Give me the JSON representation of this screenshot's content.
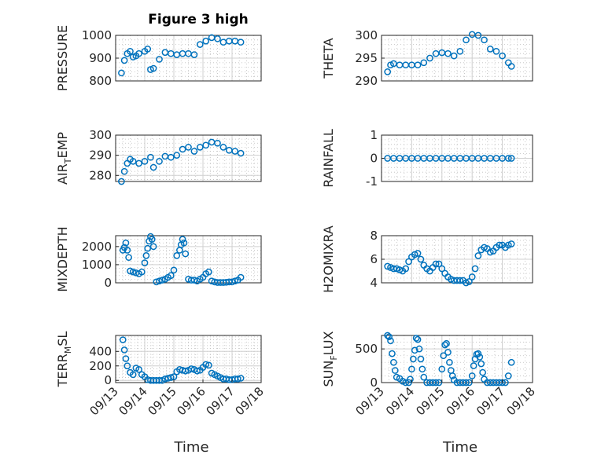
{
  "figure_title": "Figure 3 high",
  "colors": {
    "marker": "#0072bd",
    "axis": "#262626",
    "grid": "#d0d0d0"
  },
  "chart_data": [
    {
      "type": "scatter",
      "ylabel": "PRESSURE",
      "ylim": [
        800,
        1000
      ],
      "yticks": [
        "800",
        "900",
        "1000"
      ],
      "xlim": [
        "09/13",
        "09/18"
      ],
      "grid": true,
      "x": [
        13.2,
        13.3,
        13.4,
        13.5,
        13.6,
        13.7,
        13.8,
        14.0,
        14.1,
        14.2,
        14.3,
        14.5,
        14.7,
        14.9,
        15.1,
        15.3,
        15.5,
        15.7,
        15.9,
        16.1,
        16.3,
        16.5,
        16.7,
        16.9,
        17.1,
        17.3
      ],
      "y": [
        835,
        890,
        920,
        930,
        905,
        910,
        920,
        930,
        940,
        850,
        855,
        895,
        925,
        920,
        915,
        920,
        920,
        915,
        960,
        975,
        990,
        985,
        970,
        975,
        975,
        970
      ]
    },
    {
      "type": "scatter",
      "ylabel": "THETA",
      "ylim": [
        290,
        300
      ],
      "yticks": [
        "290",
        "295",
        "300"
      ],
      "xlim": [
        "09/13",
        "09/18"
      ],
      "grid": true,
      "x": [
        13.2,
        13.3,
        13.4,
        13.6,
        13.8,
        14.0,
        14.2,
        14.4,
        14.6,
        14.8,
        15.0,
        15.2,
        15.4,
        15.6,
        15.8,
        16.0,
        16.2,
        16.4,
        16.6,
        16.8,
        17.0,
        17.2,
        17.3
      ],
      "y": [
        292,
        293.5,
        293.8,
        293.5,
        293.5,
        293.5,
        293.5,
        294,
        295,
        296,
        296.2,
        296,
        295.5,
        296.5,
        299,
        300.2,
        300,
        299,
        297,
        296.5,
        295.5,
        294,
        293.2
      ]
    },
    {
      "type": "scatter",
      "ylabel": "AIR_TEMP",
      "ylim": [
        277,
        300
      ],
      "yticks": [
        "280",
        "290",
        "300"
      ],
      "xlim": [
        "09/13",
        "09/18"
      ],
      "grid": true,
      "x": [
        13.2,
        13.3,
        13.4,
        13.5,
        13.6,
        13.8,
        14.0,
        14.2,
        14.3,
        14.5,
        14.7,
        14.9,
        15.1,
        15.3,
        15.5,
        15.7,
        15.9,
        16.1,
        16.3,
        16.5,
        16.7,
        16.9,
        17.1,
        17.3
      ],
      "y": [
        277,
        282,
        286,
        288,
        287,
        286,
        287,
        289,
        284,
        287,
        289.5,
        289,
        290,
        293,
        294,
        292,
        294,
        295,
        296.5,
        296,
        294,
        292.5,
        292,
        291
      ]
    },
    {
      "type": "scatter",
      "ylabel": "RAINFALL",
      "ylim": [
        -1,
        1
      ],
      "yticks": [
        "-1",
        "0",
        "1"
      ],
      "xlim": [
        "09/13",
        "09/18"
      ],
      "grid": true,
      "x": [
        13.2,
        13.4,
        13.6,
        13.8,
        14.0,
        14.2,
        14.4,
        14.6,
        14.8,
        15.0,
        15.2,
        15.4,
        15.6,
        15.8,
        16.0,
        16.2,
        16.4,
        16.6,
        16.8,
        17.0,
        17.2,
        17.3
      ],
      "y": [
        0,
        0,
        0,
        0,
        0,
        0,
        0,
        0,
        0,
        0,
        0,
        0,
        0,
        0,
        0,
        0,
        0,
        0,
        0,
        0,
        0,
        0
      ]
    },
    {
      "type": "scatter",
      "ylabel": "MIXDEPTH",
      "ylim": [
        0,
        2600
      ],
      "yticks": [
        "0",
        "1000",
        "2000"
      ],
      "xlim": [
        "09/13",
        "09/18"
      ],
      "grid": true,
      "x": [
        13.25,
        13.3,
        13.35,
        13.4,
        13.45,
        13.5,
        13.6,
        13.7,
        13.8,
        13.9,
        14.0,
        14.05,
        14.1,
        14.15,
        14.2,
        14.25,
        14.3,
        14.4,
        14.5,
        14.6,
        14.7,
        14.8,
        14.9,
        15.0,
        15.1,
        15.2,
        15.25,
        15.3,
        15.35,
        15.4,
        15.5,
        15.6,
        15.7,
        15.8,
        15.9,
        16.0,
        16.1,
        16.2,
        16.3,
        16.4,
        16.5,
        16.6,
        16.7,
        16.8,
        16.9,
        17.0,
        17.1,
        17.2,
        17.3
      ],
      "y": [
        1800,
        1950,
        2200,
        1800,
        1400,
        650,
        600,
        550,
        500,
        600,
        1100,
        1500,
        1900,
        2300,
        2550,
        2400,
        2000,
        50,
        100,
        150,
        200,
        300,
        400,
        700,
        1500,
        1800,
        2100,
        2400,
        2200,
        1600,
        200,
        150,
        150,
        100,
        200,
        300,
        500,
        600,
        100,
        50,
        20,
        20,
        20,
        30,
        50,
        50,
        100,
        150,
        300
      ]
    },
    {
      "type": "scatter",
      "ylabel": "H2OMIXRA",
      "ylim": [
        4,
        8
      ],
      "yticks": [
        "4",
        "6",
        "8"
      ],
      "xlim": [
        "09/13",
        "09/18"
      ],
      "grid": true,
      "x": [
        13.2,
        13.3,
        13.4,
        13.5,
        13.6,
        13.7,
        13.8,
        13.9,
        14.0,
        14.1,
        14.2,
        14.3,
        14.4,
        14.5,
        14.6,
        14.7,
        14.8,
        14.9,
        15.0,
        15.1,
        15.2,
        15.3,
        15.4,
        15.5,
        15.6,
        15.7,
        15.8,
        15.9,
        16.0,
        16.1,
        16.2,
        16.3,
        16.4,
        16.5,
        16.6,
        16.7,
        16.8,
        16.9,
        17.0,
        17.1,
        17.2,
        17.3
      ],
      "y": [
        5.4,
        5.3,
        5.2,
        5.2,
        5.1,
        5.0,
        5.2,
        5.8,
        6.2,
        6.4,
        6.5,
        6.0,
        5.5,
        5.2,
        5.0,
        5.3,
        5.6,
        5.6,
        5.2,
        4.8,
        4.5,
        4.3,
        4.2,
        4.2,
        4.2,
        4.2,
        4.0,
        4.1,
        4.5,
        5.2,
        6.3,
        6.8,
        7.0,
        6.9,
        6.6,
        6.7,
        7.0,
        7.2,
        7.2,
        7.0,
        7.2,
        7.3
      ]
    },
    {
      "type": "scatter",
      "ylabel": "TERR_MSL",
      "ylim": [
        -30,
        620
      ],
      "yticks": [
        "0",
        "200",
        "400"
      ],
      "xlim": [
        "09/13",
        "09/18"
      ],
      "grid": true,
      "x": [
        13.25,
        13.3,
        13.35,
        13.4,
        13.5,
        13.6,
        13.7,
        13.8,
        13.9,
        14.0,
        14.1,
        14.2,
        14.3,
        14.4,
        14.5,
        14.6,
        14.7,
        14.8,
        14.9,
        15.0,
        15.1,
        15.2,
        15.3,
        15.4,
        15.5,
        15.6,
        15.7,
        15.8,
        15.9,
        16.0,
        16.1,
        16.2,
        16.3,
        16.4,
        16.5,
        16.6,
        16.7,
        16.8,
        16.9,
        17.0,
        17.1,
        17.2,
        17.3
      ],
      "y": [
        560,
        420,
        300,
        200,
        110,
        80,
        170,
        150,
        80,
        50,
        10,
        0,
        0,
        0,
        0,
        0,
        20,
        30,
        40,
        50,
        120,
        150,
        140,
        130,
        140,
        160,
        150,
        130,
        140,
        180,
        220,
        210,
        100,
        80,
        60,
        40,
        20,
        20,
        10,
        10,
        20,
        20,
        30
      ]
    },
    {
      "type": "scatter",
      "ylabel": "SUN_FLUX",
      "ylim": [
        0,
        700
      ],
      "yticks": [
        "0",
        "500"
      ],
      "xlim": [
        "09/13",
        "09/18"
      ],
      "grid": true,
      "x": [
        13.2,
        13.25,
        13.3,
        13.35,
        13.4,
        13.45,
        13.5,
        13.6,
        13.7,
        13.8,
        13.9,
        13.95,
        14.0,
        14.05,
        14.1,
        14.15,
        14.2,
        14.25,
        14.3,
        14.35,
        14.4,
        14.5,
        14.6,
        14.7,
        14.8,
        14.9,
        15.0,
        15.05,
        15.1,
        15.15,
        15.2,
        15.25,
        15.3,
        15.35,
        15.4,
        15.5,
        15.6,
        15.7,
        15.8,
        15.9,
        16.0,
        16.05,
        16.1,
        16.15,
        16.2,
        16.25,
        16.3,
        16.35,
        16.4,
        16.5,
        16.6,
        16.7,
        16.8,
        16.9,
        17.0,
        17.1,
        17.2,
        17.3
      ],
      "y": [
        700,
        680,
        620,
        430,
        300,
        180,
        80,
        60,
        20,
        0,
        0,
        50,
        200,
        350,
        480,
        660,
        640,
        500,
        350,
        200,
        80,
        0,
        0,
        0,
        0,
        0,
        200,
        400,
        560,
        580,
        450,
        300,
        180,
        100,
        40,
        0,
        0,
        0,
        0,
        0,
        100,
        250,
        350,
        420,
        430,
        380,
        280,
        150,
        50,
        0,
        0,
        0,
        0,
        0,
        0,
        0,
        100,
        300
      ]
    }
  ],
  "xticks": [
    "09/13",
    "09/14",
    "09/15",
    "09/16",
    "09/17",
    "09/18"
  ],
  "xlabel": "Time"
}
